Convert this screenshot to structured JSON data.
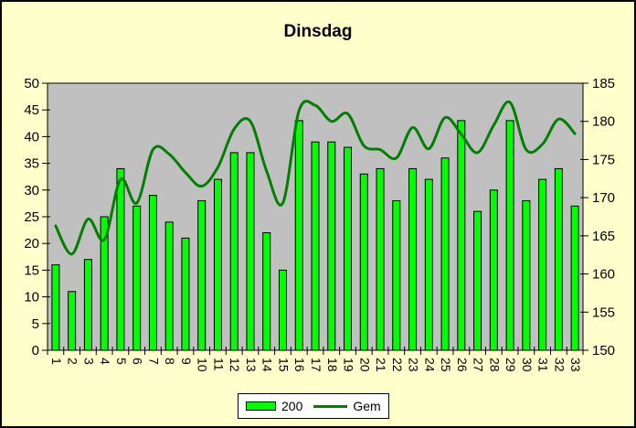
{
  "window": {
    "background_color": "#FFFFCC",
    "plot_background_color": "#C0C0C0",
    "border_color": "#000000"
  },
  "chart_data": {
    "type": "bar+line",
    "title": "Dinsdag",
    "categories": [
      "1",
      "2",
      "3",
      "4",
      "5",
      "6",
      "7",
      "8",
      "9",
      "10",
      "11",
      "12",
      "13",
      "14",
      "15",
      "16",
      "17",
      "18",
      "19",
      "20",
      "21",
      "22",
      "23",
      "24",
      "25",
      "26",
      "27",
      "28",
      "29",
      "30",
      "31",
      "32",
      "33"
    ],
    "series": [
      {
        "name": "200",
        "type": "bar",
        "axis": "left",
        "color": "#00FF00",
        "values": [
          16,
          11,
          17,
          25,
          34,
          27,
          29,
          24,
          21,
          28,
          32,
          37,
          37,
          22,
          15,
          43,
          39,
          39,
          38,
          33,
          34,
          28,
          34,
          32,
          36,
          43,
          26,
          30,
          43,
          28,
          32,
          34,
          27
        ]
      },
      {
        "name": "Gem",
        "type": "line",
        "axis": "right",
        "smooth": true,
        "color": "#008000",
        "values": [
          166.3,
          162.6,
          167.2,
          164.5,
          172.4,
          169.3,
          176.3,
          175.7,
          173.3,
          171.5,
          174.0,
          179.0,
          180.0,
          173.5,
          169.3,
          181.4,
          182.1,
          180.0,
          181.0,
          176.8,
          176.3,
          175.2,
          179.2,
          176.4,
          180.5,
          178.3,
          175.9,
          179.5,
          182.5,
          176.3,
          177.0,
          180.3,
          178.4
        ]
      }
    ],
    "left_axis": {
      "min": 0,
      "max": 50,
      "step": 5,
      "ticks": [
        "0",
        "5",
        "10",
        "15",
        "20",
        "25",
        "30",
        "35",
        "40",
        "45",
        "50"
      ]
    },
    "right_axis": {
      "min": 150,
      "max": 185,
      "step": 5,
      "ticks": [
        "150",
        "155",
        "160",
        "165",
        "170",
        "175",
        "180",
        "185"
      ]
    },
    "grid": false,
    "legend_position": "bottom"
  }
}
